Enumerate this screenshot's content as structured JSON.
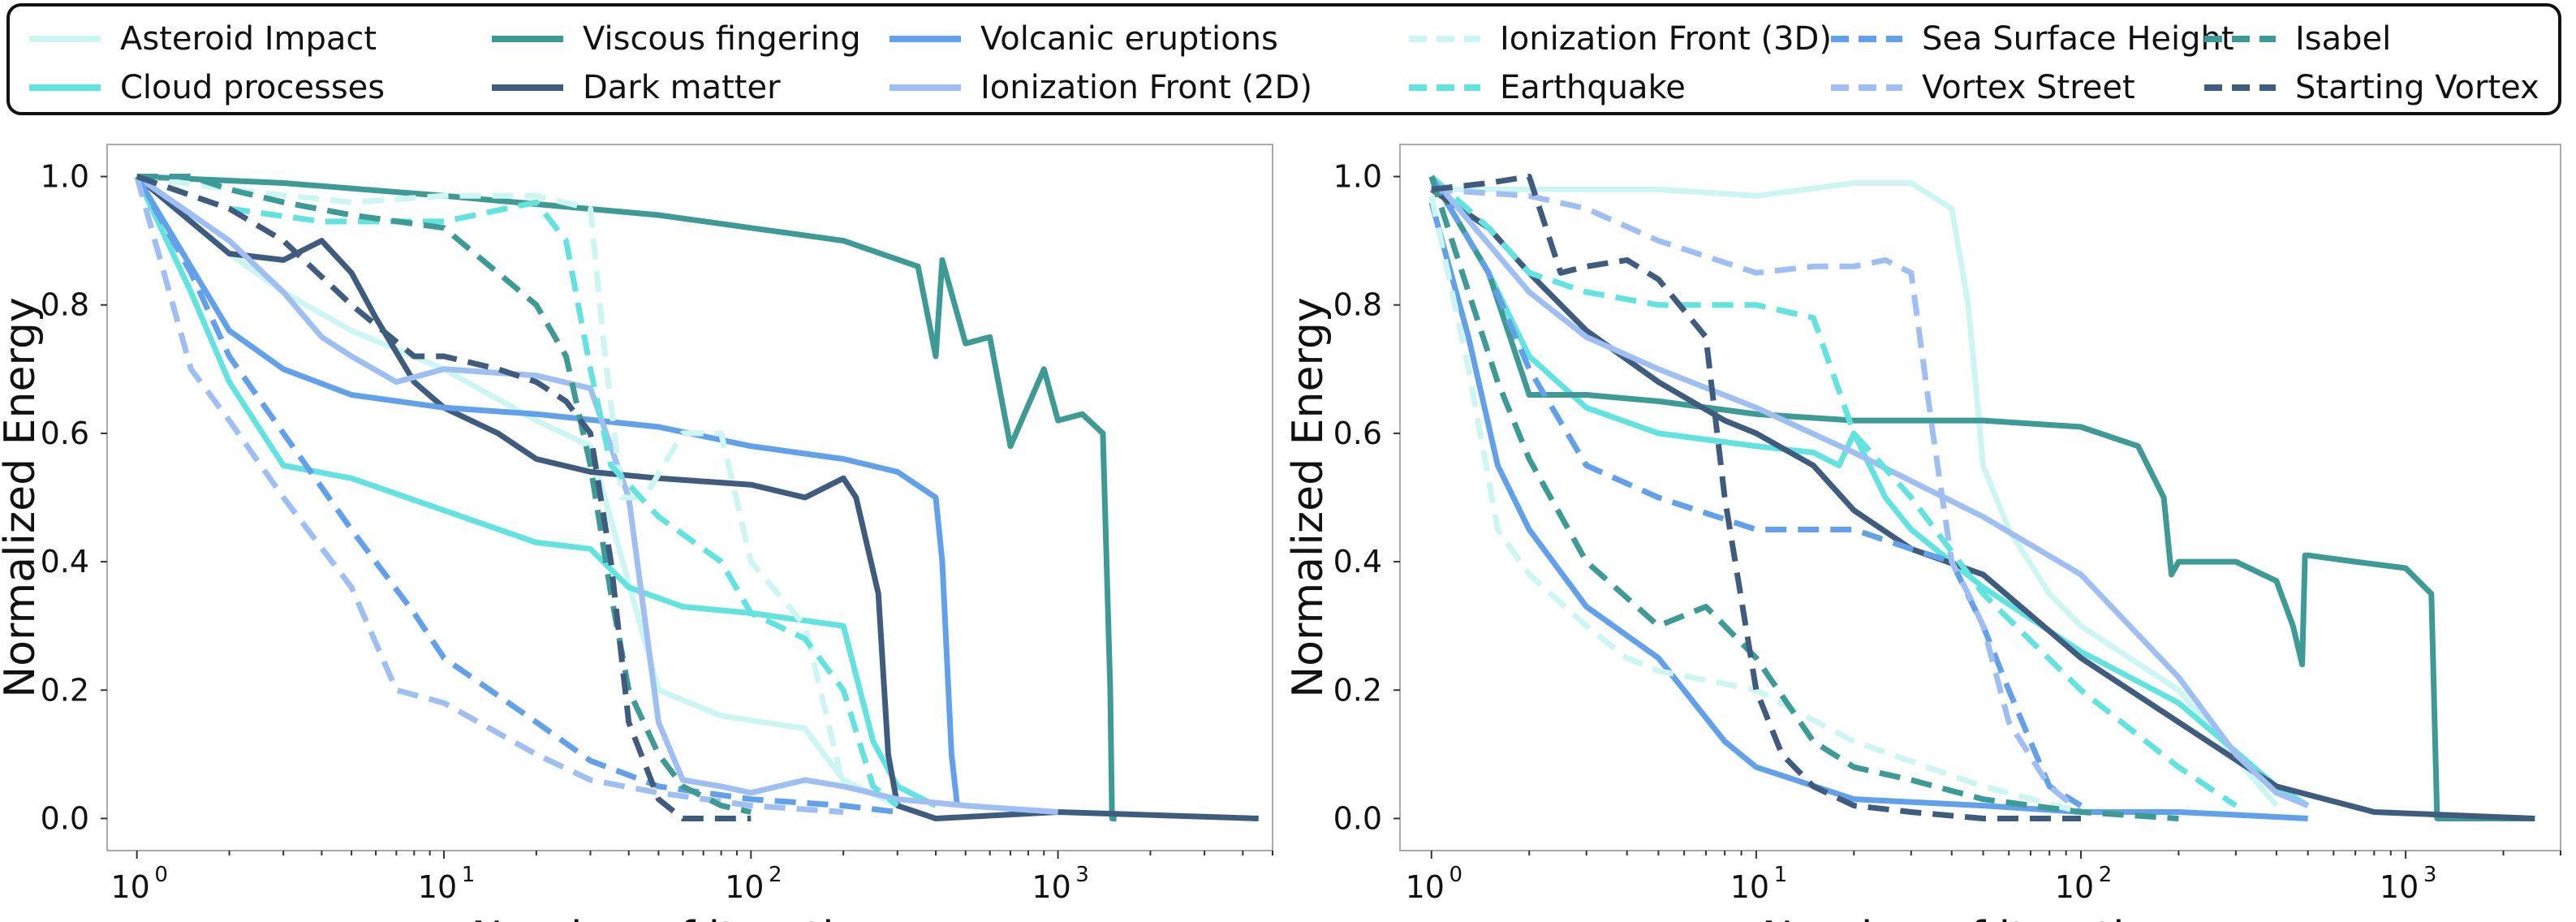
{
  "legend": [
    {
      "name": "Asteroid Impact",
      "color": "#cdf5f1",
      "dash": false
    },
    {
      "name": "Cloud processes",
      "color": "#62e3df",
      "dash": false
    },
    {
      "name": "Viscous fingering",
      "color": "#3d9a95",
      "dash": false
    },
    {
      "name": "Dark matter",
      "color": "#3f5c7e",
      "dash": false
    },
    {
      "name": "Volcanic eruptions",
      "color": "#62a0ea",
      "dash": false
    },
    {
      "name": "Ionization Front (2D)",
      "color": "#9fbff3",
      "dash": false
    },
    {
      "name": "Ionization Front (3D)",
      "color": "#cdf5f1",
      "dash": true
    },
    {
      "name": "Earthquake",
      "color": "#62e3df",
      "dash": true
    },
    {
      "name": "Sea Surface Height",
      "color": "#62a0ea",
      "dash": true
    },
    {
      "name": "Vortex Street",
      "color": "#9fbff3",
      "dash": true
    },
    {
      "name": "Isabel",
      "color": "#3d9a95",
      "dash": true
    },
    {
      "name": "Starting Vortex",
      "color": "#3f5c7e",
      "dash": true
    }
  ],
  "chart_data": [
    {
      "type": "line",
      "panel": "left",
      "xlabel": "Number of iterations",
      "ylabel": "Normalized Energy",
      "xscale": "log",
      "xlim": [
        0.8,
        5000
      ],
      "ylim": [
        -0.05,
        1.05
      ],
      "yticks": [
        "0.0",
        "0.2",
        "0.4",
        "0.6",
        "0.8",
        "1.0"
      ],
      "xticks": [
        {
          "base": "10",
          "exp": "0",
          "value": 1
        },
        {
          "base": "10",
          "exp": "1",
          "value": 10
        },
        {
          "base": "10",
          "exp": "2",
          "value": 100
        },
        {
          "base": "10",
          "exp": "3",
          "value": 1000
        }
      ],
      "series": [
        {
          "name": "Asteroid Impact",
          "color": "#cdf5f1",
          "dash": false,
          "x": [
            1,
            2,
            3,
            5,
            10,
            20,
            30,
            50,
            80,
            150,
            200,
            300
          ],
          "y": [
            1.0,
            0.88,
            0.82,
            0.76,
            0.7,
            0.62,
            0.58,
            0.2,
            0.16,
            0.14,
            0.06,
            0.02
          ]
        },
        {
          "name": "Cloud processes",
          "color": "#62e3df",
          "dash": false,
          "x": [
            1,
            1.5,
            2,
            3,
            5,
            10,
            20,
            30,
            40,
            60,
            100,
            200,
            250,
            300,
            400
          ],
          "y": [
            1.0,
            0.82,
            0.68,
            0.55,
            0.53,
            0.48,
            0.43,
            0.42,
            0.36,
            0.33,
            0.32,
            0.3,
            0.12,
            0.05,
            0.02
          ]
        },
        {
          "name": "Viscous fingering",
          "color": "#3d9a95",
          "dash": false,
          "x": [
            1,
            3,
            10,
            50,
            100,
            200,
            350,
            400,
            420,
            500,
            600,
            700,
            900,
            1000,
            1200,
            1400,
            1480,
            1500,
            1550
          ],
          "y": [
            1.0,
            0.99,
            0.97,
            0.94,
            0.92,
            0.9,
            0.86,
            0.72,
            0.87,
            0.74,
            0.75,
            0.58,
            0.7,
            0.62,
            0.63,
            0.6,
            0.2,
            0.0,
            0.0
          ]
        },
        {
          "name": "Dark matter",
          "color": "#3f5c7e",
          "dash": false,
          "x": [
            1,
            2,
            3,
            4,
            5,
            6,
            8,
            10,
            15,
            20,
            30,
            50,
            100,
            150,
            200,
            220,
            260,
            280,
            300,
            400,
            1000,
            4500
          ],
          "y": [
            1.0,
            0.88,
            0.87,
            0.9,
            0.85,
            0.78,
            0.68,
            0.64,
            0.6,
            0.56,
            0.54,
            0.53,
            0.52,
            0.5,
            0.53,
            0.5,
            0.35,
            0.1,
            0.02,
            0.0,
            0.01,
            0.0
          ]
        },
        {
          "name": "Volcanic eruptions",
          "color": "#62a0ea",
          "dash": false,
          "x": [
            1,
            2,
            3,
            5,
            10,
            20,
            50,
            100,
            200,
            300,
            400,
            420,
            450,
            470
          ],
          "y": [
            1.0,
            0.76,
            0.7,
            0.66,
            0.64,
            0.63,
            0.61,
            0.58,
            0.56,
            0.54,
            0.5,
            0.4,
            0.1,
            0.02
          ]
        },
        {
          "name": "Ionization Front (2D)",
          "color": "#9fbff3",
          "dash": false,
          "x": [
            1,
            2,
            3,
            4,
            5,
            7,
            10,
            20,
            30,
            40,
            50,
            60,
            80,
            100,
            150,
            200,
            300,
            500,
            1000
          ],
          "y": [
            1.0,
            0.9,
            0.82,
            0.75,
            0.72,
            0.68,
            0.7,
            0.69,
            0.67,
            0.5,
            0.15,
            0.06,
            0.05,
            0.04,
            0.06,
            0.05,
            0.03,
            0.02,
            0.01
          ]
        },
        {
          "name": "Ionization Front (3D)",
          "color": "#cdf5f1",
          "dash": true,
          "x": [
            1,
            2,
            5,
            10,
            20,
            30,
            33,
            38,
            45,
            60,
            80,
            100,
            150,
            200
          ],
          "y": [
            1.0,
            0.98,
            0.96,
            0.97,
            0.97,
            0.95,
            0.75,
            0.5,
            0.5,
            0.6,
            0.6,
            0.4,
            0.3,
            0.05
          ]
        },
        {
          "name": "Earthquake",
          "color": "#62e3df",
          "dash": true,
          "x": [
            1,
            2,
            4,
            10,
            20,
            25,
            30,
            35,
            50,
            80,
            100,
            150,
            200,
            250,
            300
          ],
          "y": [
            1.0,
            0.95,
            0.93,
            0.93,
            0.96,
            0.9,
            0.7,
            0.55,
            0.47,
            0.4,
            0.32,
            0.28,
            0.2,
            0.05,
            0.02
          ]
        },
        {
          "name": "Sea Surface Height",
          "color": "#62a0ea",
          "dash": true,
          "x": [
            1,
            1.5,
            2,
            3,
            5,
            8,
            10,
            20,
            30,
            50,
            100,
            200,
            300
          ],
          "y": [
            1.0,
            0.85,
            0.72,
            0.6,
            0.45,
            0.32,
            0.25,
            0.15,
            0.09,
            0.05,
            0.03,
            0.02,
            0.01
          ]
        },
        {
          "name": "Vortex Street",
          "color": "#9fbff3",
          "dash": true,
          "x": [
            1,
            1.5,
            2,
            3,
            5,
            7,
            10,
            20,
            30,
            50,
            100,
            200
          ],
          "y": [
            1.0,
            0.7,
            0.62,
            0.5,
            0.36,
            0.2,
            0.18,
            0.1,
            0.06,
            0.04,
            0.02,
            0.01
          ]
        },
        {
          "name": "Isabel",
          "color": "#3d9a95",
          "dash": true,
          "x": [
            1,
            1.5,
            2,
            3,
            5,
            10,
            15,
            20,
            25,
            30,
            35,
            40,
            50,
            60,
            80,
            100
          ],
          "y": [
            1.0,
            1.0,
            0.98,
            0.96,
            0.94,
            0.92,
            0.85,
            0.8,
            0.72,
            0.55,
            0.35,
            0.2,
            0.1,
            0.05,
            0.02,
            0.01
          ]
        },
        {
          "name": "Starting Vortex",
          "color": "#3f5c7e",
          "dash": true,
          "x": [
            1,
            2,
            3,
            5,
            8,
            10,
            15,
            20,
            25,
            30,
            35,
            40,
            50,
            60,
            100
          ],
          "y": [
            1.0,
            0.95,
            0.9,
            0.8,
            0.72,
            0.72,
            0.7,
            0.68,
            0.65,
            0.6,
            0.4,
            0.15,
            0.03,
            0.0,
            0.0
          ]
        }
      ]
    },
    {
      "type": "line",
      "panel": "right",
      "xlabel": "Number of iterations",
      "ylabel": "Normalized Energy",
      "xscale": "log",
      "xlim": [
        0.8,
        3000
      ],
      "ylim": [
        -0.05,
        1.05
      ],
      "yticks": [
        "0.0",
        "0.2",
        "0.4",
        "0.6",
        "0.8",
        "1.0"
      ],
      "xticks": [
        {
          "base": "10",
          "exp": "0",
          "value": 1
        },
        {
          "base": "10",
          "exp": "1",
          "value": 10
        },
        {
          "base": "10",
          "exp": "2",
          "value": 100
        },
        {
          "base": "10",
          "exp": "3",
          "value": 1000
        }
      ],
      "series": [
        {
          "name": "Asteroid Impact",
          "color": "#cdf5f1",
          "dash": false,
          "x": [
            1,
            2,
            5,
            10,
            20,
            30,
            40,
            45,
            50,
            60,
            80,
            100,
            200,
            400
          ],
          "y": [
            0.98,
            0.98,
            0.98,
            0.97,
            0.99,
            0.99,
            0.95,
            0.8,
            0.55,
            0.45,
            0.35,
            0.3,
            0.2,
            0.02
          ]
        },
        {
          "name": "Cloud processes",
          "color": "#62e3df",
          "dash": false,
          "x": [
            1,
            1.5,
            2,
            3,
            5,
            10,
            15,
            18,
            20,
            25,
            30,
            50,
            100,
            200,
            400,
            500
          ],
          "y": [
            1.0,
            0.85,
            0.72,
            0.64,
            0.6,
            0.58,
            0.57,
            0.55,
            0.6,
            0.5,
            0.45,
            0.36,
            0.26,
            0.18,
            0.05,
            0.02
          ]
        },
        {
          "name": "Viscous fingering",
          "color": "#3d9a95",
          "dash": false,
          "x": [
            1,
            1.5,
            2,
            3,
            5,
            10,
            20,
            50,
            100,
            150,
            180,
            190,
            200,
            300,
            400,
            450,
            480,
            490,
            500,
            700,
            1000,
            1200,
            1250,
            2500
          ],
          "y": [
            1.0,
            0.85,
            0.66,
            0.66,
            0.65,
            0.63,
            0.62,
            0.62,
            0.61,
            0.58,
            0.5,
            0.38,
            0.4,
            0.4,
            0.37,
            0.3,
            0.24,
            0.41,
            0.41,
            0.4,
            0.39,
            0.35,
            0.0,
            0.0
          ]
        },
        {
          "name": "Dark matter",
          "color": "#3f5c7e",
          "dash": false,
          "x": [
            1,
            1.5,
            2,
            3,
            5,
            8,
            10,
            15,
            20,
            30,
            50,
            100,
            200,
            400,
            800,
            2500
          ],
          "y": [
            0.98,
            0.92,
            0.85,
            0.76,
            0.68,
            0.62,
            0.6,
            0.55,
            0.48,
            0.42,
            0.38,
            0.25,
            0.15,
            0.05,
            0.01,
            0.0
          ]
        },
        {
          "name": "Volcanic eruptions",
          "color": "#62a0ea",
          "dash": false,
          "x": [
            1,
            1.3,
            1.6,
            2,
            3,
            5,
            8,
            10,
            20,
            50,
            100,
            200,
            500
          ],
          "y": [
            0.96,
            0.75,
            0.55,
            0.45,
            0.33,
            0.25,
            0.12,
            0.08,
            0.03,
            0.02,
            0.01,
            0.01,
            0.0
          ]
        },
        {
          "name": "Ionization Front (2D)",
          "color": "#9fbff3",
          "dash": false,
          "x": [
            1,
            2,
            3,
            5,
            10,
            20,
            50,
            100,
            200,
            300,
            400,
            500
          ],
          "y": [
            1.0,
            0.82,
            0.75,
            0.7,
            0.64,
            0.57,
            0.47,
            0.38,
            0.22,
            0.1,
            0.04,
            0.02
          ]
        },
        {
          "name": "Ionization Front (3D)",
          "color": "#cdf5f1",
          "dash": true,
          "x": [
            1,
            1.3,
            1.6,
            2,
            3,
            4,
            5,
            10,
            20,
            50,
            100
          ],
          "y": [
            0.97,
            0.7,
            0.45,
            0.38,
            0.3,
            0.25,
            0.23,
            0.2,
            0.12,
            0.05,
            0.01
          ]
        },
        {
          "name": "Earthquake",
          "color": "#62e3df",
          "dash": true,
          "x": [
            1,
            1.5,
            2,
            3,
            5,
            10,
            15,
            20,
            30,
            50,
            100,
            200,
            300
          ],
          "y": [
            1.0,
            0.92,
            0.85,
            0.82,
            0.8,
            0.8,
            0.78,
            0.6,
            0.5,
            0.35,
            0.2,
            0.08,
            0.02
          ]
        },
        {
          "name": "Sea Surface Height",
          "color": "#62a0ea",
          "dash": true,
          "x": [
            1,
            1.5,
            2,
            3,
            5,
            10,
            15,
            20,
            30,
            40,
            50,
            60,
            80,
            100
          ],
          "y": [
            1.0,
            0.85,
            0.7,
            0.55,
            0.5,
            0.45,
            0.45,
            0.45,
            0.42,
            0.4,
            0.3,
            0.2,
            0.05,
            0.02
          ]
        },
        {
          "name": "Vortex Street",
          "color": "#9fbff3",
          "dash": true,
          "x": [
            1,
            2,
            3,
            5,
            10,
            15,
            20,
            25,
            30,
            35,
            40,
            45,
            50,
            60,
            80,
            100
          ],
          "y": [
            0.98,
            0.97,
            0.95,
            0.9,
            0.85,
            0.86,
            0.86,
            0.87,
            0.85,
            0.6,
            0.4,
            0.35,
            0.3,
            0.15,
            0.05,
            0.01
          ]
        },
        {
          "name": "Isabel",
          "color": "#3d9a95",
          "dash": true,
          "x": [
            1,
            1.3,
            1.6,
            2,
            3,
            5,
            7,
            10,
            15,
            20,
            30,
            50,
            100,
            200
          ],
          "y": [
            1.0,
            0.82,
            0.68,
            0.56,
            0.4,
            0.3,
            0.33,
            0.25,
            0.12,
            0.08,
            0.06,
            0.03,
            0.01,
            0.0
          ]
        },
        {
          "name": "Starting Vortex",
          "color": "#3f5c7e",
          "dash": true,
          "x": [
            1,
            1.5,
            2,
            2.5,
            3,
            4,
            5,
            7,
            8,
            10,
            12,
            15,
            20,
            30,
            50,
            100
          ],
          "y": [
            0.98,
            0.99,
            1.0,
            0.85,
            0.86,
            0.87,
            0.84,
            0.75,
            0.5,
            0.2,
            0.1,
            0.05,
            0.02,
            0.01,
            0.0,
            0.0
          ]
        }
      ]
    }
  ]
}
